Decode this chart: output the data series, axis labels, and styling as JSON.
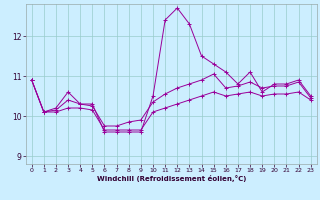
{
  "title": "",
  "xlabel": "Windchill (Refroidissement éolien,°C)",
  "ylabel": "",
  "bg_color": "#cceeff",
  "line_color": "#990099",
  "grid_color": "#99cccc",
  "xlim": [
    -0.5,
    23.5
  ],
  "ylim": [
    8.8,
    12.8
  ],
  "yticks": [
    9,
    10,
    11,
    12
  ],
  "xticks": [
    0,
    1,
    2,
    3,
    4,
    5,
    6,
    7,
    8,
    9,
    10,
    11,
    12,
    13,
    14,
    15,
    16,
    17,
    18,
    19,
    20,
    21,
    22,
    23
  ],
  "series": [
    {
      "x": [
        0,
        1,
        2,
        3,
        4,
        5,
        6,
        7,
        8,
        9,
        10,
        11,
        12,
        13,
        14,
        15,
        16,
        17,
        18,
        19,
        20,
        21,
        22,
        23
      ],
      "y": [
        10.9,
        10.1,
        10.2,
        10.6,
        10.3,
        10.3,
        9.6,
        9.6,
        9.6,
        9.6,
        10.5,
        12.4,
        12.7,
        12.3,
        11.5,
        11.3,
        11.1,
        10.8,
        11.1,
        10.6,
        10.8,
        10.8,
        10.9,
        10.5
      ]
    },
    {
      "x": [
        0,
        1,
        2,
        3,
        4,
        5,
        6,
        7,
        8,
        9,
        10,
        11,
        12,
        13,
        14,
        15,
        16,
        17,
        18,
        19,
        20,
        21,
        22,
        23
      ],
      "y": [
        10.9,
        10.1,
        10.15,
        10.4,
        10.3,
        10.25,
        9.75,
        9.75,
        9.85,
        9.9,
        10.35,
        10.55,
        10.7,
        10.8,
        10.9,
        11.05,
        10.7,
        10.75,
        10.85,
        10.7,
        10.75,
        10.75,
        10.85,
        10.45
      ]
    },
    {
      "x": [
        0,
        1,
        2,
        3,
        4,
        5,
        6,
        7,
        8,
        9,
        10,
        11,
        12,
        13,
        14,
        15,
        16,
        17,
        18,
        19,
        20,
        21,
        22,
        23
      ],
      "y": [
        10.9,
        10.1,
        10.1,
        10.2,
        10.2,
        10.15,
        9.65,
        9.65,
        9.65,
        9.65,
        10.1,
        10.2,
        10.3,
        10.4,
        10.5,
        10.6,
        10.5,
        10.55,
        10.6,
        10.5,
        10.55,
        10.55,
        10.6,
        10.4
      ]
    }
  ]
}
